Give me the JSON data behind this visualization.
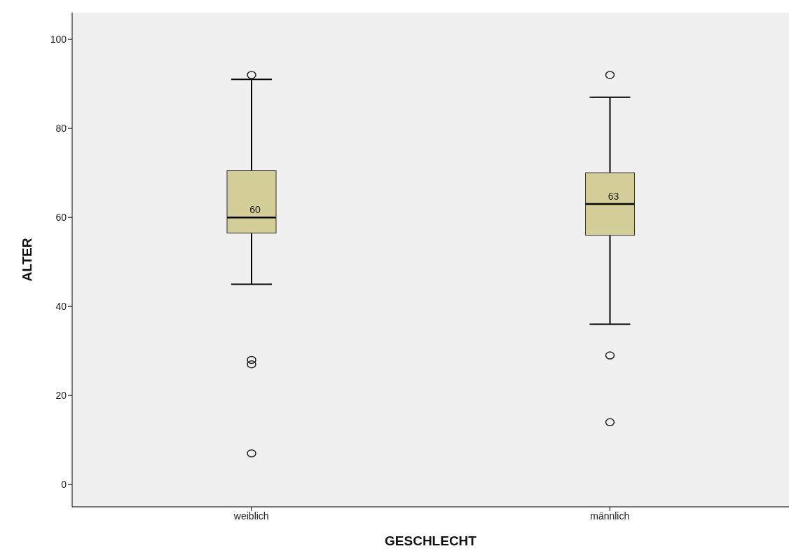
{
  "chart_data": {
    "type": "box",
    "xlabel": "GESCHLECHT",
    "ylabel": "ALTER",
    "categories": [
      "weiblich",
      "männlich"
    ],
    "boxes": [
      {
        "low": 45,
        "q1": 56.5,
        "median": 60,
        "q3": 70.5,
        "high": 91,
        "outliers": [
          92,
          28,
          27,
          7
        ]
      },
      {
        "low": 36,
        "q1": 56,
        "median": 63,
        "q3": 70,
        "high": 87,
        "outliers": [
          92,
          29,
          14
        ]
      }
    ],
    "color": "#d3ce97",
    "ylim": [
      -5,
      106
    ],
    "yticks": [
      0,
      20,
      40,
      60,
      80,
      100
    ],
    "annotations": [
      {
        "text": "60",
        "x": "weiblich",
        "y": 60
      },
      {
        "text": "63",
        "x": "männlich",
        "y": 63
      }
    ]
  }
}
